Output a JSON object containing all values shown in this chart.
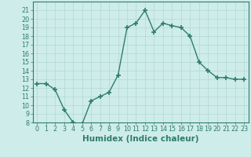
{
  "x": [
    0,
    1,
    2,
    3,
    4,
    5,
    6,
    7,
    8,
    9,
    10,
    11,
    12,
    13,
    14,
    15,
    16,
    17,
    18,
    19,
    20,
    21,
    22,
    23
  ],
  "y": [
    12.5,
    12.5,
    11.8,
    9.5,
    8.0,
    7.8,
    10.5,
    11.0,
    11.5,
    13.5,
    19.0,
    19.5,
    21.0,
    18.5,
    19.5,
    19.2,
    19.0,
    18.0,
    15.0,
    14.0,
    13.2,
    13.2,
    13.0,
    13.0
  ],
  "line_color": "#2e7d6e",
  "marker": "+",
  "marker_size": 4,
  "marker_linewidth": 1.2,
  "bg_color": "#ceecea",
  "grid_color": "#b0d8d4",
  "xlabel": "Humidex (Indice chaleur)",
  "ylim": [
    8,
    22
  ],
  "xlim": [
    -0.5,
    23.5
  ],
  "yticks": [
    8,
    9,
    10,
    11,
    12,
    13,
    14,
    15,
    16,
    17,
    18,
    19,
    20,
    21
  ],
  "xticks": [
    0,
    1,
    2,
    3,
    4,
    5,
    6,
    7,
    8,
    9,
    10,
    11,
    12,
    13,
    14,
    15,
    16,
    17,
    18,
    19,
    20,
    21,
    22,
    23
  ],
  "tick_color": "#2e7d6e",
  "axis_color": "#2e7d6e",
  "label_fontsize": 7.5,
  "tick_fontsize": 5.8,
  "linewidth": 1.0
}
